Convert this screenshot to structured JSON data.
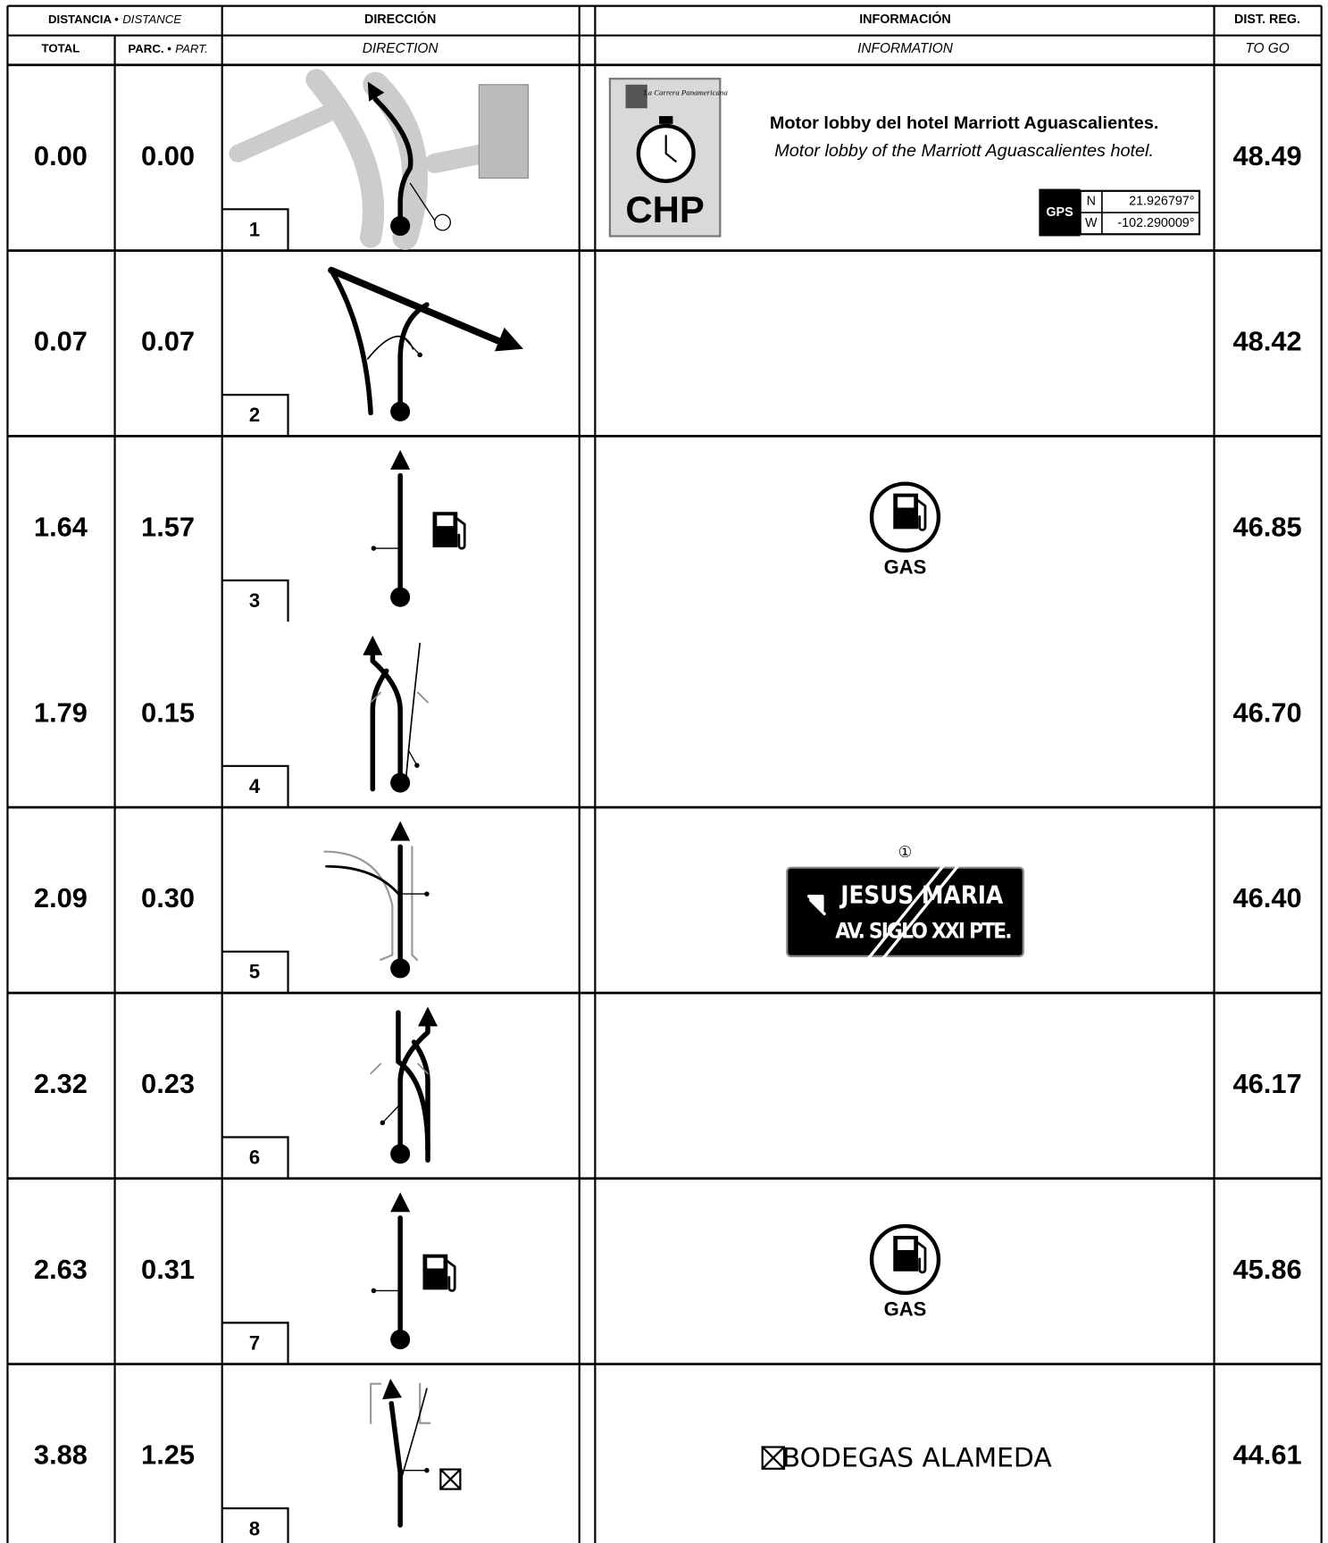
{
  "header": {
    "distance": "DISTANCIA •",
    "distance_en": "DISTANCE",
    "direction": "DIRECCIÓN",
    "direction_en": "DIRECTION",
    "information": "INFORMACIÓN",
    "information_en": "INFORMATION",
    "to_go": "DIST. REG.",
    "to_go_en": "TO GO",
    "total": "TOTAL",
    "partial": "PARC. •",
    "partial_en": "PART."
  },
  "rows": [
    {
      "total": "0.00",
      "partial": "0.00",
      "number": "1",
      "to_go": "48.49",
      "info": {
        "title": "Motor lobby del hotel Marriott Aguascalientes.",
        "subtitle": "Motor lobby of the Marriott Aguascalientes hotel.",
        "gps": {
          "label": "GPS",
          "n_label": "N",
          "n": "21.926797°",
          "w_label": "W",
          "w": "-102.290009°"
        },
        "logo": {
          "text": "CHP",
          "brand": "La Carrera Panamericana"
        }
      }
    },
    {
      "total": "0.07",
      "partial": "0.07",
      "number": "2",
      "to_go": "48.42"
    },
    {
      "total": "1.64",
      "partial": "1.57",
      "number": "3",
      "to_go": "46.85",
      "info": {
        "gas": "GAS"
      }
    },
    {
      "total": "1.79",
      "partial": "0.15",
      "number": "4",
      "to_go": "46.70"
    },
    {
      "total": "2.09",
      "partial": "0.30",
      "number": "5",
      "to_go": "46.40",
      "info": {
        "sign": {
          "marker": "①",
          "line1": "JESUS MARIA",
          "line2": "AV. SIGLO XXI PTE."
        }
      }
    },
    {
      "total": "2.32",
      "partial": "0.23",
      "number": "6",
      "to_go": "46.17"
    },
    {
      "total": "2.63",
      "partial": "0.31",
      "number": "7",
      "to_go": "45.86",
      "info": {
        "gas": "GAS"
      }
    },
    {
      "total": "3.88",
      "partial": "1.25",
      "number": "8",
      "to_go": "44.61",
      "info": {
        "place": "BODEGAS ALAMEDA"
      }
    }
  ]
}
